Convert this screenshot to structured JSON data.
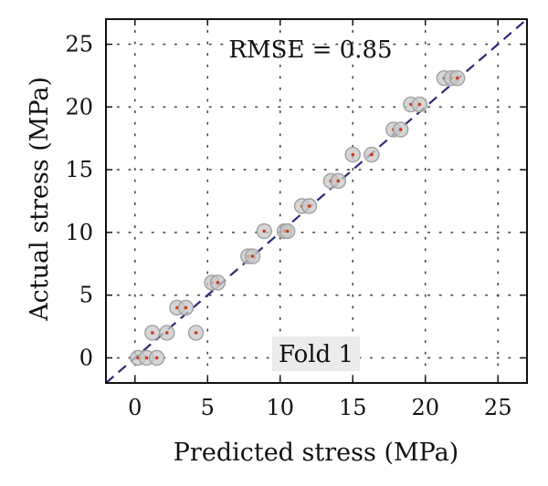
{
  "chart_data": {
    "type": "scatter",
    "annotation": "RMSE = 0.85",
    "fold_label": "Fold 1",
    "xlabel": "Predicted stress (MPa)",
    "ylabel": "Actual stress (MPa)",
    "xlim": [
      -2,
      27
    ],
    "ylim": [
      -2,
      27
    ],
    "xticks": [
      0,
      5,
      10,
      15,
      20,
      25
    ],
    "yticks": [
      0,
      5,
      10,
      15,
      20,
      25
    ],
    "grid": true,
    "reference_line": "y = x",
    "colors": {
      "marker_fill": "#c8c8c8",
      "marker_edge": "#a0a0a0",
      "center_dot": "#d03a1a",
      "reference_line": "#2b2a78",
      "fold_box": "#ebebeb"
    },
    "points": [
      {
        "x": 0.2,
        "y": 0.0
      },
      {
        "x": 0.8,
        "y": 0.0
      },
      {
        "x": 1.5,
        "y": 0.0
      },
      {
        "x": 1.2,
        "y": 2.0
      },
      {
        "x": 2.2,
        "y": 2.0
      },
      {
        "x": 4.2,
        "y": 2.0
      },
      {
        "x": 2.9,
        "y": 4.0
      },
      {
        "x": 3.5,
        "y": 4.0
      },
      {
        "x": 5.3,
        "y": 6.0
      },
      {
        "x": 5.7,
        "y": 6.0
      },
      {
        "x": 7.8,
        "y": 8.1
      },
      {
        "x": 8.1,
        "y": 8.1
      },
      {
        "x": 8.9,
        "y": 10.1
      },
      {
        "x": 10.3,
        "y": 10.1
      },
      {
        "x": 10.5,
        "y": 10.1
      },
      {
        "x": 11.5,
        "y": 12.1
      },
      {
        "x": 12.0,
        "y": 12.1
      },
      {
        "x": 13.5,
        "y": 14.1
      },
      {
        "x": 14.0,
        "y": 14.1
      },
      {
        "x": 15.0,
        "y": 16.2
      },
      {
        "x": 16.3,
        "y": 16.2
      },
      {
        "x": 17.8,
        "y": 18.2
      },
      {
        "x": 18.3,
        "y": 18.2
      },
      {
        "x": 19.0,
        "y": 20.2
      },
      {
        "x": 19.6,
        "y": 20.2
      },
      {
        "x": 21.3,
        "y": 22.3
      },
      {
        "x": 21.8,
        "y": 22.3
      },
      {
        "x": 22.2,
        "y": 22.3
      }
    ]
  }
}
